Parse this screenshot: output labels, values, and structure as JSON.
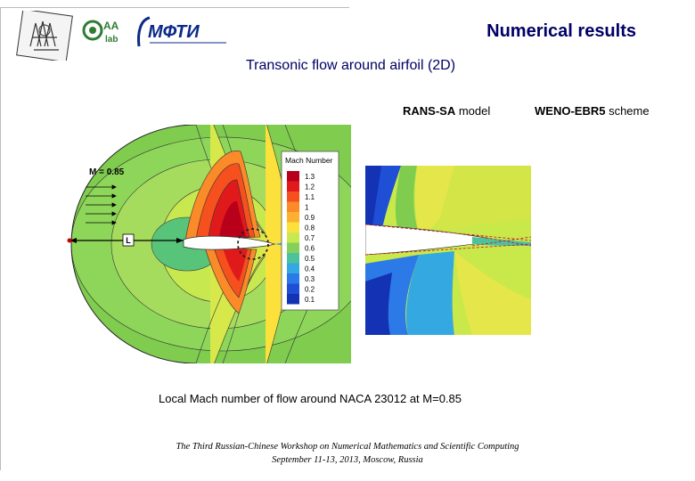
{
  "header": {
    "title": "Numerical results",
    "subtitle": "Transonic flow around airfoil (2D)",
    "logos": [
      "academy-seal-logo",
      "aa-lab-logo",
      "mipt-logo"
    ],
    "mipt_logo_text": "МФТИ"
  },
  "figure": {
    "model_bold": "RANS-SA",
    "model_rest": " model",
    "scheme_bold": "WENO-EBR5",
    "scheme_rest": " scheme",
    "freestream_label": "M = 0.85",
    "length_label": "L",
    "legend_title": "Mach Number",
    "legend_levels": [
      "1.3",
      "1.2",
      "1.1",
      "1",
      "0.9",
      "0.8",
      "0.7",
      "0.6",
      "0.5",
      "0.4",
      "0.3",
      "0.2",
      "0.1"
    ],
    "legend_colors": [
      "#b8001a",
      "#e01a1a",
      "#f5501e",
      "#fb8a28",
      "#fdb02f",
      "#fce13d",
      "#c8e850",
      "#84d05a",
      "#4cc29c",
      "#34a8e0",
      "#2c7ae8",
      "#1f4fd4",
      "#1432b4"
    ],
    "caption": "Local Mach number of flow around NACA 23012 at M=0.85"
  },
  "footer": {
    "line1": "The Third Russian-Chinese Workshop on Numerical Mathematics and Scientific Computing",
    "line2": "September 11-13, 2013, Moscow, Russia"
  }
}
